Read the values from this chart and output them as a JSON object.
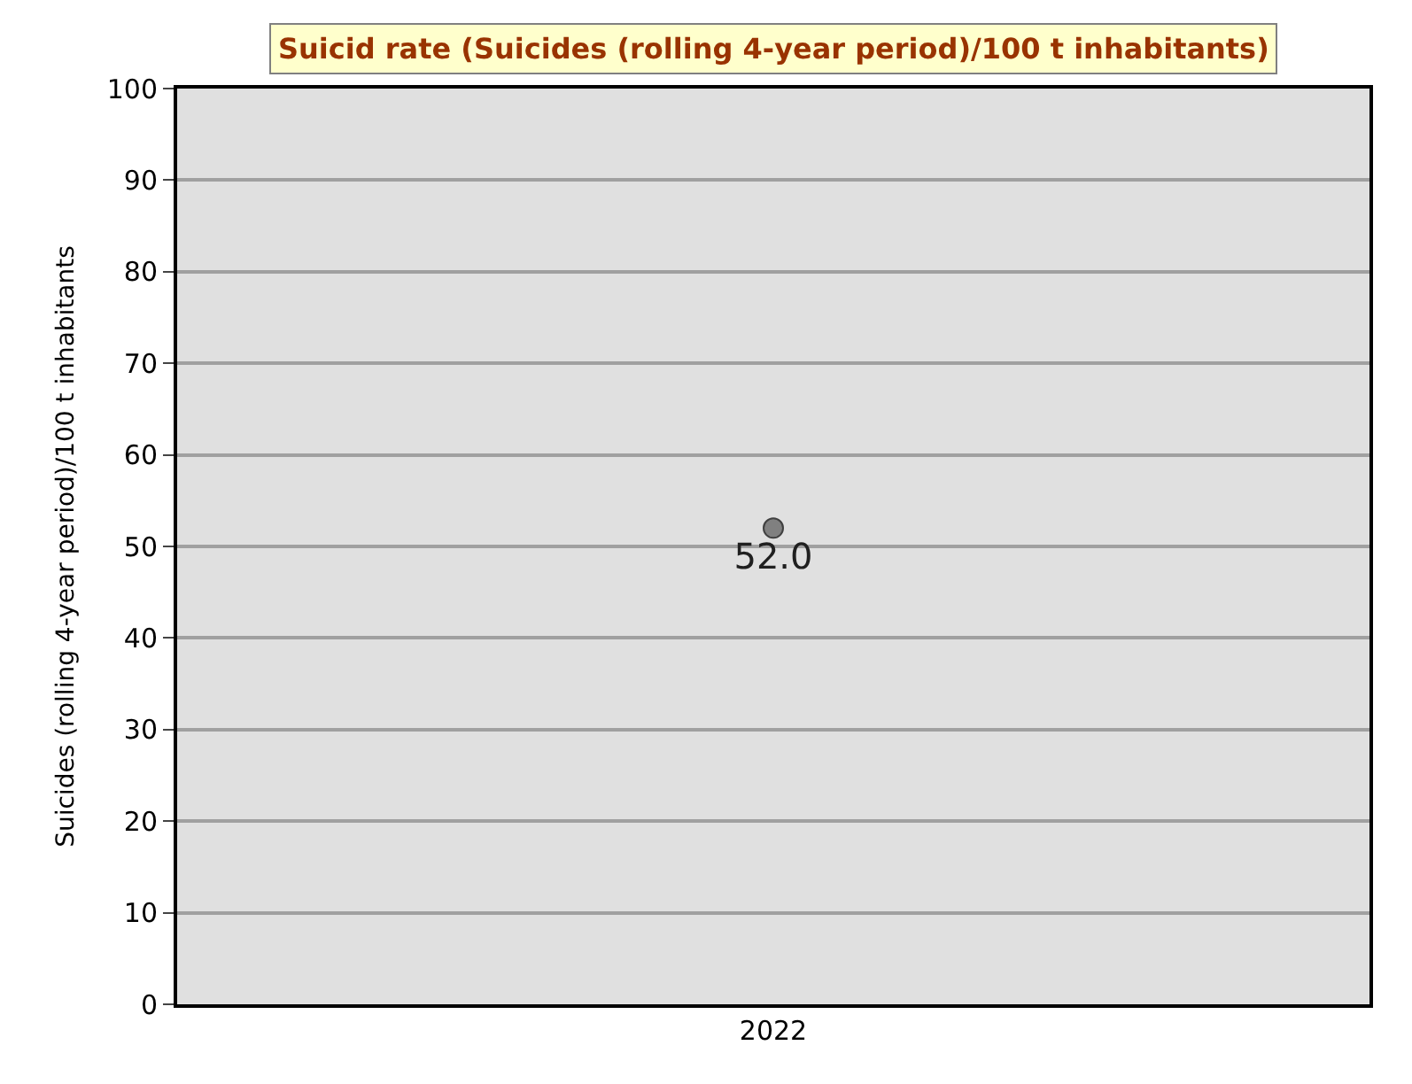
{
  "chart_data": {
    "type": "scatter",
    "title": "Suicid rate (Suicides (rolling 4-year period)/100 t inhabitants)",
    "ylabel": "Suicides (rolling 4-year period)/100 t inhabitants",
    "categories": [
      "2022"
    ],
    "series": [
      {
        "color": "#808080",
        "values": [
          52.0
        ],
        "value_labels": [
          "52.0"
        ]
      }
    ],
    "ylim": [
      0,
      100
    ],
    "yticks": [
      0,
      10,
      20,
      30,
      40,
      50,
      60,
      70,
      80,
      90,
      100
    ],
    "grid": "y",
    "legend": false,
    "marker": "circle"
  }
}
